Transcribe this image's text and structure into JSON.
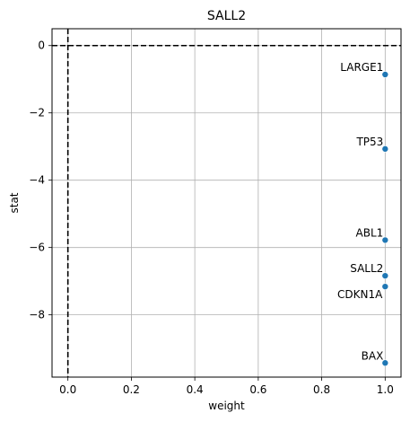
{
  "chart_data": {
    "type": "scatter",
    "title": "SALL2",
    "xlabel": "weight",
    "ylabel": "stat",
    "xlim": [
      -0.05,
      1.05
    ],
    "ylim": [
      -9.85,
      0.5
    ],
    "xticks": [
      0.0,
      0.2,
      0.4,
      0.6,
      0.8,
      1.0
    ],
    "xtick_labels": [
      "0.0",
      "0.2",
      "0.4",
      "0.6",
      "0.8",
      "1.0"
    ],
    "yticks": [
      0,
      -2,
      -4,
      -6,
      -8
    ],
    "ytick_labels": [
      "0",
      "−2",
      "−4",
      "−6",
      "−8"
    ],
    "grid": true,
    "reference_lines": {
      "x": 0,
      "y": 0,
      "style": "dashed"
    },
    "points": [
      {
        "label": "LARGE1",
        "x": 1.0,
        "y": -0.86
      },
      {
        "label": "TP53",
        "x": 1.0,
        "y": -3.07
      },
      {
        "label": "ABL1",
        "x": 1.0,
        "y": -5.78
      },
      {
        "label": "SALL2",
        "x": 1.0,
        "y": -6.84
      },
      {
        "label": "CDKN1A",
        "x": 1.0,
        "y": -7.16
      },
      {
        "label": "BAX",
        "x": 1.0,
        "y": -9.43
      }
    ],
    "colors": {
      "point": "#1f77b4",
      "grid": "#b0b0b0",
      "reference_line": "#000000"
    }
  }
}
